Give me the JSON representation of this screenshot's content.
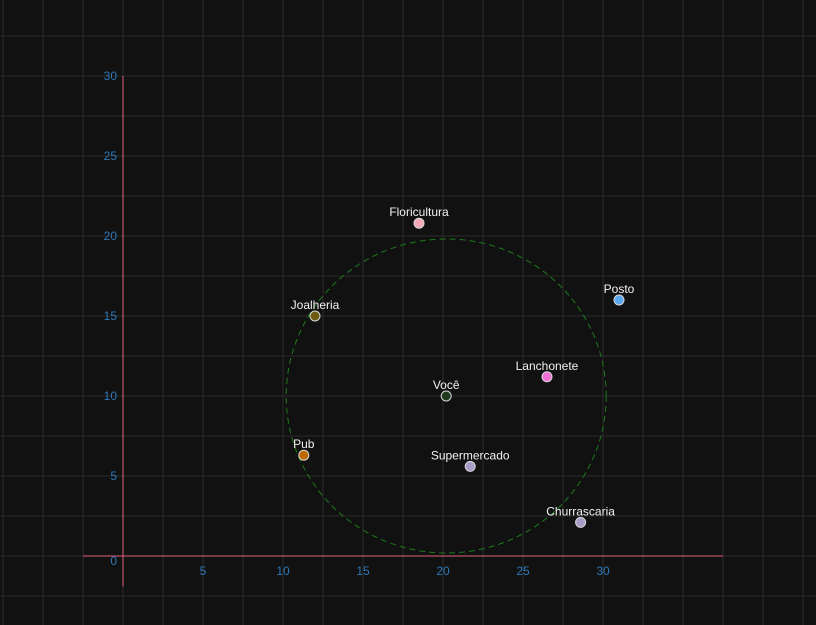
{
  "chart_data": {
    "type": "scatter",
    "title": "",
    "xlabel": "",
    "ylabel": "",
    "xlim": [
      -2.5,
      37.5
    ],
    "ylim": [
      0,
      30
    ],
    "grid": true,
    "x_ticks": [
      5,
      10,
      15,
      20,
      25,
      30
    ],
    "y_ticks": [
      0,
      5,
      10,
      15,
      20,
      25,
      30
    ],
    "points": [
      {
        "label": "Floricultura",
        "x": 18.5,
        "y": 20.8,
        "color": "#f7a8b8"
      },
      {
        "label": "Posto",
        "x": 31.0,
        "y": 16.0,
        "color": "#5aa8f0"
      },
      {
        "label": "Joalheria",
        "x": 12.0,
        "y": 15.0,
        "color": "#6b5a10"
      },
      {
        "label": "Lanchonete",
        "x": 26.5,
        "y": 11.2,
        "color": "#f070d8"
      },
      {
        "label": "Você",
        "x": 20.2,
        "y": 10.0,
        "color": "#1f3a1f"
      },
      {
        "label": "Pub",
        "x": 11.3,
        "y": 6.3,
        "color": "#c06800"
      },
      {
        "label": "Supermercado",
        "x": 21.7,
        "y": 5.6,
        "color": "#a89cc8"
      },
      {
        "label": "Churrascaria",
        "x": 28.6,
        "y": 2.1,
        "color": "#a89cc8"
      }
    ],
    "circle": {
      "cx": 20.2,
      "cy": 10.0,
      "r": 10,
      "color": "#1d7a1d"
    },
    "axis_color": "#e0607a",
    "grid_color": "#2b2b2b"
  }
}
